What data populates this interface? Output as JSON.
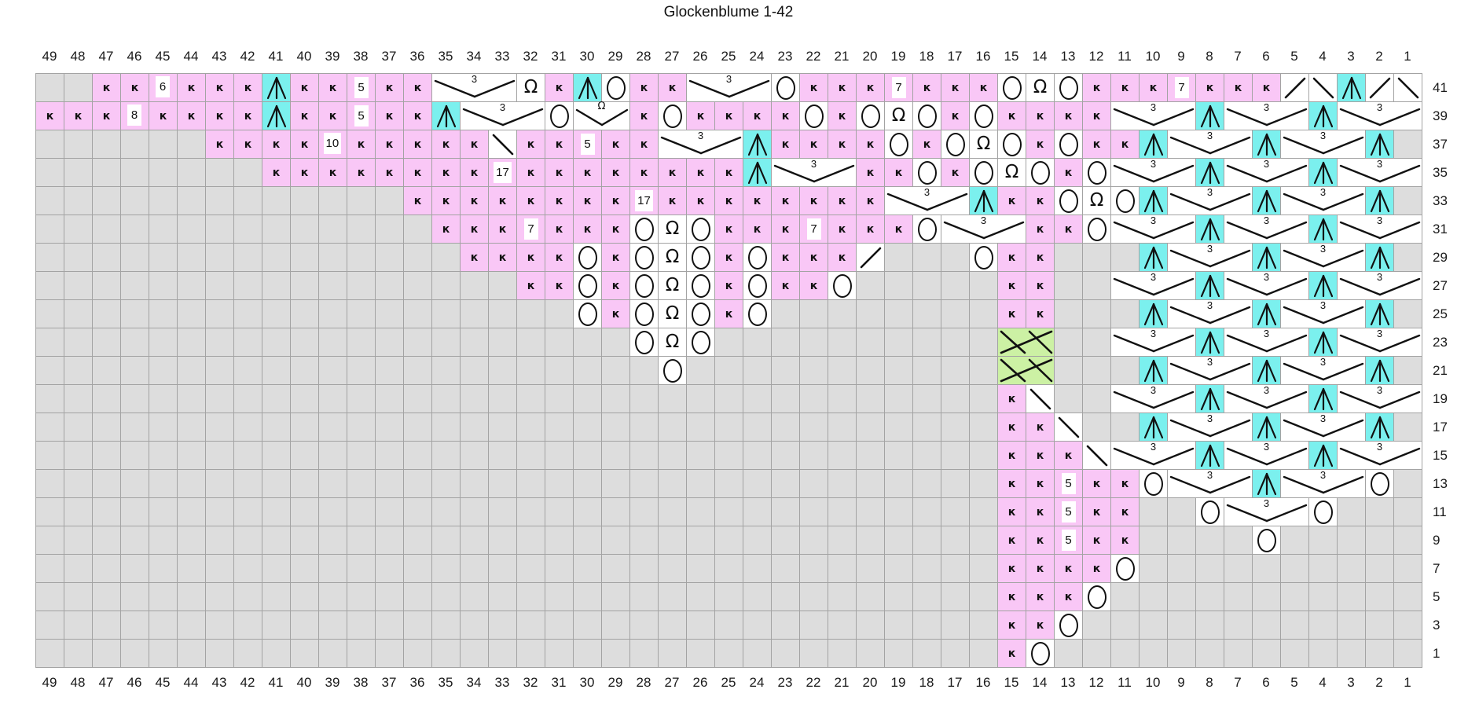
{
  "title": "Glockenblume 1-42",
  "colors": {
    "pink": "#f9c7f6",
    "cyan": "#7bf0ee",
    "green": "#ccf1a4",
    "no_stitch_gray": "#dddddd",
    "cell_border": "#a3a3a3",
    "symbol": "#111111",
    "white": "#ffffff"
  },
  "legend": {
    "g": "no-stitch",
    "k": "knit",
    "o": "yarn-over",
    "q": "twisted-yarn-over",
    "s": "left-leaning-decrease",
    "b": "right-leaning-decrease",
    "A": "centered-double-decrease",
    "V": "gather-3-stitches",
    "W": "gather-2-with-twisted-yarn-over",
    "C": "cable-cross",
    "n": "stitch-count-box"
  },
  "grid": {
    "col_labels": [
      49,
      48,
      47,
      46,
      45,
      44,
      43,
      42,
      41,
      40,
      39,
      38,
      37,
      36,
      35,
      34,
      33,
      32,
      31,
      30,
      29,
      28,
      27,
      26,
      25,
      24,
      23,
      22,
      21,
      20,
      19,
      18,
      17,
      16,
      15,
      14,
      13,
      12,
      11,
      10,
      9,
      8,
      7,
      6,
      5,
      4,
      3,
      2,
      1
    ],
    "row_labels": [
      41,
      39,
      37,
      35,
      33,
      31,
      29,
      27,
      25,
      23,
      21,
      19,
      17,
      15,
      13,
      11,
      9,
      7,
      5,
      3,
      1
    ],
    "rows": [
      "g*2 k*6 A k k n5 k k V q k A o k k V o k*3 n7 k*3 o q o k*3 n7 k*3 s b A s b",
      "k*8 A k k n5 k k A V o W k o k*4 o k o q o k o k*4 V A V A V",
      "g*6 k*10 b k k n5 k k V A k*4 o k o q o k o k k A V A V A g",
      "g*8 k*8 n17 k*8 A V k k o k o q o k o V A V A V",
      "g*13 k*8 n17 k*8 V A k k o q o A V A V A g",
      "g*14 k*3 n7 k*3 o q o k*3 n7 k*3 o V k k o V A V A V",
      "g*15 k*4 o k o q o k o k*3 s g*3 o k k g*3 A V A V A g",
      "g*17 k k o k o q o k o k k o g*5 k k g g V A V A V",
      "g*19 o k o q o k o g*8 k k g*3 A V A V A g",
      "g*21 o q o g*10 C g g V A V A V",
      "g*22 o g*11 C g*3 A V A V A g",
      "g*34 k b g g V A V A V",
      "g*34 k k b g g A V A V A g",
      "g*34 k*3 b V A V A V",
      "g*34 k k n5 k k o V A V o g",
      "g*34 k k n5 k k g g o V o g*3",
      "g*34 k k n5 k k g*4 o g*5",
      "g*34 k*4 o g*10",
      "g*34 k*3 o g*11",
      "g*34 k k o g*12",
      "g*34 k o g*13"
    ]
  },
  "markers": [
    {
      "row": 41,
      "at": 44.5,
      "text": "6"
    },
    {
      "row": 39,
      "at": 45.5,
      "text": "8"
    },
    {
      "row": 37,
      "at": 38.5,
      "text": "10"
    }
  ]
}
